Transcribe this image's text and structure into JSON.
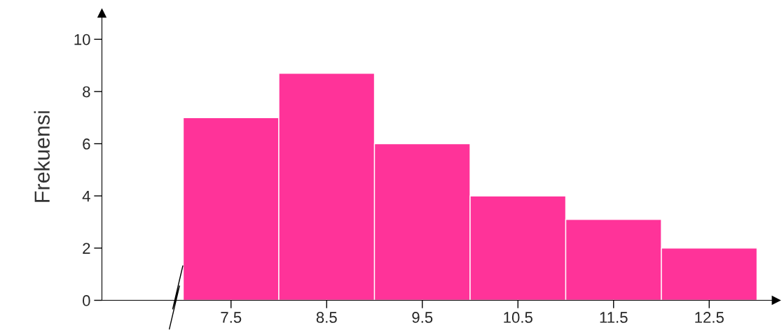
{
  "chart_data": {
    "type": "histogram",
    "ylabel": "Frekuensi",
    "bins": [
      7,
      8,
      9,
      10,
      11,
      12,
      13
    ],
    "values": [
      7,
      8.7,
      6,
      4,
      3.1,
      2
    ],
    "color": "#ff3399",
    "xlim": [
      6.15,
      13.2
    ],
    "ylim": [
      0,
      11
    ],
    "xticks": [
      7.5,
      8.5,
      9.5,
      10.5,
      11.5,
      12.5
    ],
    "yticks": [
      0,
      2,
      4,
      6,
      8,
      10
    ],
    "grid": false
  }
}
